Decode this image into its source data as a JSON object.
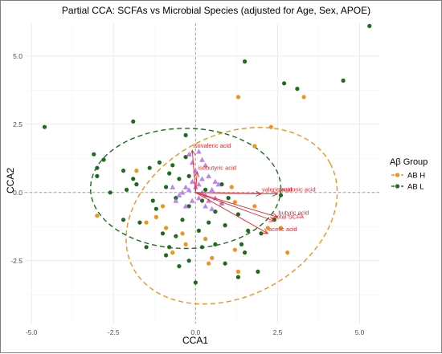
{
  "chart_data": {
    "type": "scatter",
    "title": "Partial CCA: SCFAs vs Microbial Species (adjusted for Age, Sex, APOE)",
    "xlabel": "CCA1",
    "ylabel": "CCA2",
    "xlim": [
      -5.2,
      5.6
    ],
    "ylim": [
      -4.8,
      6.2
    ],
    "xticks": [
      -5.0,
      -2.5,
      0.0,
      2.5,
      5.0
    ],
    "yticks": [
      -2.5,
      0.0,
      2.5,
      5.0
    ],
    "xtick_labels": [
      "-5.0",
      "-2.5",
      "0.0",
      "2.5",
      "5.0"
    ],
    "ytick_labels": [
      "-2.5",
      "0.0",
      "2.5",
      "5.0"
    ],
    "grid": true,
    "legend": {
      "title": "Aβ Group",
      "position": "right",
      "entries": [
        {
          "label": "AB H",
          "color": "#f0921e"
        },
        {
          "label": "AB L",
          "color": "#1e6b1e"
        }
      ]
    },
    "series": [
      {
        "name": "AB H",
        "color": "#f0921e",
        "ellipse": {
          "center": [
            1.1,
            -0.85
          ],
          "rx": 3.4,
          "ry": 2.95,
          "angle_deg": 28
        },
        "points": [
          [
            1.3,
            3.5
          ],
          [
            3.3,
            3.5
          ],
          [
            2.3,
            2.4
          ],
          [
            1.8,
            1.7
          ],
          [
            1.1,
            0.2
          ],
          [
            1.2,
            -0.35
          ],
          [
            1.8,
            -0.5
          ],
          [
            2.6,
            -1.3
          ],
          [
            2.2,
            -1.3
          ],
          [
            2.8,
            -2.2
          ],
          [
            0.5,
            -2.4
          ],
          [
            0.4,
            -2.6
          ],
          [
            1.3,
            -2.9
          ],
          [
            -0.4,
            -1.5
          ],
          [
            -0.9,
            -1.3
          ],
          [
            -1.2,
            -0.9
          ],
          [
            -0.7,
            -2.2
          ],
          [
            -1.5,
            -1.1
          ],
          [
            -1.0,
            -0.5
          ],
          [
            -3.0,
            -0.85
          ],
          [
            -1.8,
            0.8
          ],
          [
            0.3,
            -1.7
          ],
          [
            0.8,
            -0.4
          ],
          [
            -0.3,
            -1.9
          ],
          [
            1.2,
            -2.1
          ]
        ]
      },
      {
        "name": "AB L",
        "color": "#1e6b1e",
        "ellipse": {
          "center": [
            -0.3,
            0.15
          ],
          "rx": 2.9,
          "ry": 2.2,
          "angle_deg": 0
        },
        "points": [
          [
            5.3,
            6.1
          ],
          [
            4.5,
            4.1
          ],
          [
            3.1,
            3.8
          ],
          [
            2.7,
            4.0
          ],
          [
            1.5,
            4.8
          ],
          [
            -4.6,
            2.4
          ],
          [
            -3.1,
            1.4
          ],
          [
            -2.8,
            1.2
          ],
          [
            -2.2,
            0.8
          ],
          [
            -3.0,
            0.6
          ],
          [
            -2.6,
            0.0
          ],
          [
            -2.1,
            0.1
          ],
          [
            -1.9,
            0.5
          ],
          [
            -1.4,
            0.9
          ],
          [
            -0.8,
            0.7
          ],
          [
            -0.3,
            1.3
          ],
          [
            -0.5,
            0.5
          ],
          [
            -0.9,
            0.2
          ],
          [
            -0.6,
            -0.2
          ],
          [
            -1.2,
            -0.6
          ],
          [
            -0.2,
            -0.5
          ],
          [
            0.2,
            -0.3
          ],
          [
            -0.4,
            -1.0
          ],
          [
            0.6,
            -0.7
          ],
          [
            1.3,
            -0.8
          ],
          [
            0.9,
            -1.2
          ],
          [
            -1.0,
            -1.5
          ],
          [
            -1.7,
            -1.1
          ],
          [
            0.2,
            -2.0
          ],
          [
            -1.5,
            -2.0
          ],
          [
            -0.9,
            -2.3
          ],
          [
            -0.2,
            -2.5
          ],
          [
            0.9,
            -2.6
          ],
          [
            1.5,
            -2.2
          ],
          [
            2.0,
            -1.5
          ],
          [
            1.4,
            -1.9
          ],
          [
            -0.6,
            -1.6
          ],
          [
            0.4,
            -1.1
          ],
          [
            2.6,
            -0.1
          ],
          [
            2.4,
            -1.0
          ],
          [
            1.9,
            -2.9
          ],
          [
            1.3,
            -3.1
          ],
          [
            0.0,
            -3.3
          ],
          [
            -1.3,
            -0.3
          ],
          [
            -2.2,
            -1.0
          ],
          [
            -1.8,
            0.3
          ],
          [
            -0.2,
            0.6
          ],
          [
            0.8,
            0.3
          ],
          [
            1.0,
            -0.2
          ],
          [
            -1.1,
            1.1
          ],
          [
            -0.3,
            2.1
          ],
          [
            -0.7,
            1.0
          ],
          [
            -1.9,
            2.6
          ],
          [
            -3.0,
            0.9
          ],
          [
            0.1,
            -1.4
          ],
          [
            -0.5,
            -2.7
          ],
          [
            0.6,
            -1.9
          ],
          [
            1.6,
            -1.4
          ],
          [
            -0.8,
            -2.0
          ],
          [
            0.3,
            0.1
          ]
        ]
      },
      {
        "name": "",
        "color": "#b46ee6",
        "marker": "triangle",
        "points": [
          [
            0.0,
            0.2
          ],
          [
            0.1,
            0.3
          ],
          [
            -0.1,
            0.4
          ],
          [
            -0.2,
            0.1
          ],
          [
            -0.3,
            0.2
          ],
          [
            0.2,
            0.0
          ],
          [
            0.3,
            -0.1
          ],
          [
            -0.4,
            0.0
          ],
          [
            0.1,
            -0.2
          ],
          [
            -0.1,
            -0.3
          ],
          [
            0.4,
            -0.3
          ],
          [
            0.5,
            0.1
          ],
          [
            0.6,
            -0.2
          ],
          [
            -0.5,
            -0.1
          ],
          [
            -0.6,
            -0.3
          ],
          [
            0.2,
            0.5
          ],
          [
            0.0,
            0.8
          ],
          [
            -0.1,
            1.1
          ],
          [
            0.2,
            1.2
          ],
          [
            0.1,
            1.5
          ],
          [
            -0.2,
            1.4
          ],
          [
            0.3,
            1.0
          ],
          [
            0.4,
            0.6
          ],
          [
            0.7,
            0.3
          ],
          [
            0.5,
            -0.6
          ],
          [
            -0.3,
            -0.5
          ],
          [
            0.8,
            -0.4
          ],
          [
            -0.7,
            0.2
          ],
          [
            0.6,
            0.4
          ],
          [
            0.3,
            -0.5
          ]
        ]
      }
    ],
    "arrows": [
      {
        "label": "isovaleric acid",
        "x": -0.1,
        "y": 1.55
      },
      {
        "label": "isobutyric acid",
        "x": 0.05,
        "y": 0.75
      },
      {
        "label": "valeric acid",
        "x": 2.0,
        "y": -0.05
      },
      {
        "label": "propionic acid",
        "x": 2.5,
        "y": -0.05
      },
      {
        "label": "butyric acid",
        "x": 2.5,
        "y": -0.9
      },
      {
        "label": "total SCFA",
        "x": 2.4,
        "y": -1.05
      },
      {
        "label": "acetic acid",
        "x": 2.2,
        "y": -1.5
      }
    ]
  }
}
